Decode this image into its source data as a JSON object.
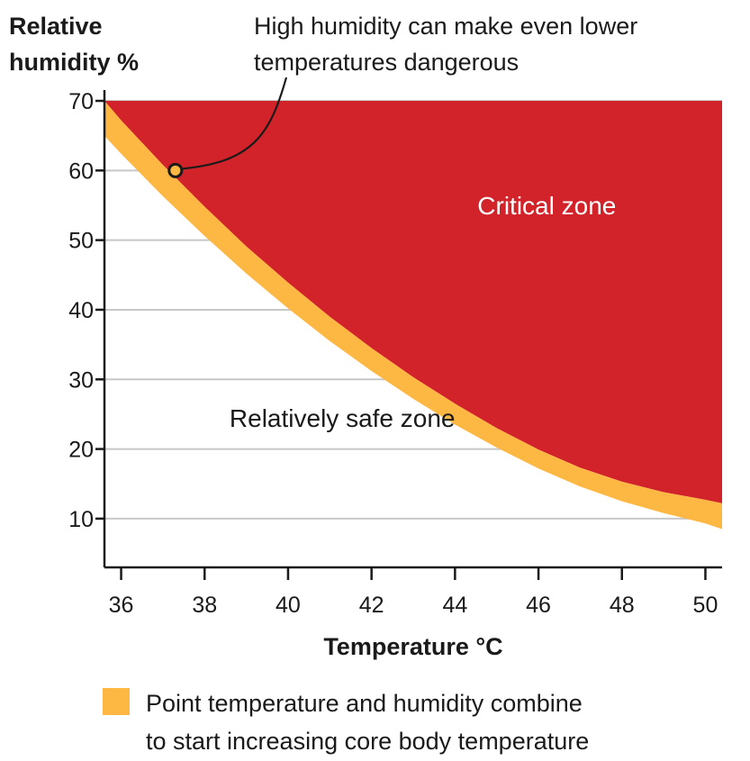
{
  "chart_data": {
    "type": "area",
    "ylabel_lines": [
      "Relative",
      "humidity %"
    ],
    "xlabel": "Temperature °C",
    "xlim": [
      35.6,
      50.4
    ],
    "ylim": [
      3,
      70
    ],
    "x_ticks": [
      36,
      38,
      40,
      42,
      44,
      46,
      48,
      50
    ],
    "y_ticks": [
      10,
      20,
      30,
      40,
      50,
      60,
      70
    ],
    "grid": "horizontal",
    "colors": {
      "critical": "#d2232a",
      "band": "#fdb743",
      "grid": "#c8c8c8",
      "axis": "#1a1a1a"
    },
    "band_upper": {
      "x": [
        35.6,
        36,
        37,
        38,
        39,
        40,
        41,
        42,
        43,
        44,
        45,
        46,
        47,
        48,
        49,
        50,
        50.4
      ],
      "y": [
        70,
        67.2,
        60.8,
        54.8,
        49.1,
        43.9,
        39.0,
        34.5,
        30.3,
        26.5,
        23.0,
        19.9,
        17.3,
        15.3,
        13.8,
        12.7,
        12.2
      ]
    },
    "band_lower": {
      "x": [
        35.6,
        36,
        37,
        38,
        39,
        40,
        41,
        42,
        43,
        44,
        45,
        46,
        47,
        48,
        49,
        50,
        50.4
      ],
      "y": [
        65,
        62.4,
        56.3,
        50.6,
        45.2,
        40.2,
        35.5,
        31.2,
        27.2,
        23.5,
        20.2,
        17.2,
        14.6,
        12.5,
        10.8,
        9.3,
        8.5
      ]
    },
    "annotation": {
      "lines": [
        "High humidity can make even lower",
        "temperatures dangerous"
      ],
      "point": {
        "x": 37.3,
        "y": 60
      }
    },
    "zone_labels": {
      "critical": {
        "text": "Critical zone",
        "x": 46.2,
        "y": 55
      },
      "safe": {
        "text": "Relatively safe zone",
        "x": 41.3,
        "y": 24.5
      }
    },
    "legend": {
      "lines": [
        "Point temperature and humidity combine",
        "to start increasing core body temperature"
      ],
      "placement": "bottom-left"
    }
  }
}
